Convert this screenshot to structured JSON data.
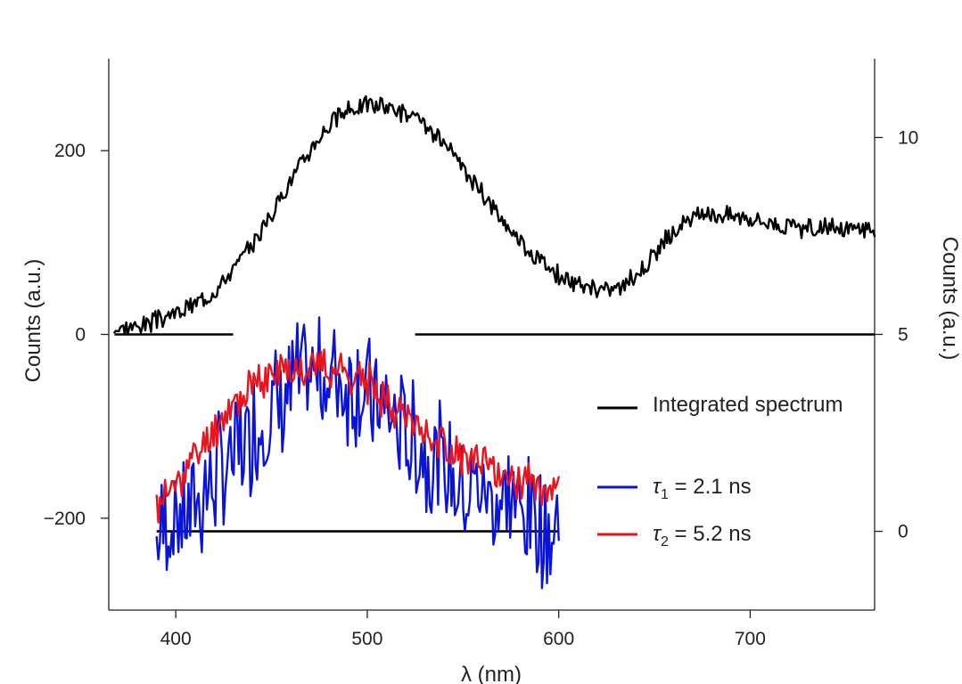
{
  "chart_data": {
    "type": "line",
    "xlabel": "λ (nm)",
    "ylabel_left": "Counts (a.u.)",
    "ylabel_right": "Counts (a.u.)",
    "xlim": [
      365,
      765
    ],
    "ylim_left": [
      -300,
      300
    ],
    "ylim_right": [
      -2,
      12
    ],
    "x_ticks": [
      400,
      500,
      600,
      700
    ],
    "y_ticks_left": [
      -200,
      0,
      200
    ],
    "y_ticks_right": [
      0,
      5,
      10
    ],
    "legend_position": "right",
    "series": [
      {
        "name": "Integrated spectrum",
        "color": "#000000",
        "axis": "left",
        "x_start": 368,
        "x_step": 2,
        "noise_seed": 3,
        "values": [
          5,
          6,
          8,
          10,
          12,
          14,
          17,
          20,
          23,
          27,
          31,
          36,
          42,
          49,
          57,
          66,
          76,
          87,
          99,
          112,
          126,
          140,
          155,
          169,
          182,
          195,
          207,
          218,
          228,
          236,
          242,
          246,
          249,
          250,
          250,
          249,
          247,
          244,
          240,
          235,
          229,
          222,
          214,
          205,
          195,
          185,
          174,
          163,
          152,
          141,
          130,
          120,
          110,
          101,
          92,
          84,
          77,
          70,
          64,
          59,
          55,
          52,
          50,
          49,
          49,
          50,
          53,
          58,
          65,
          74,
          84,
          94,
          104,
          112,
          119,
          124,
          128,
          130,
          131,
          131,
          131,
          130,
          129,
          127,
          125,
          123,
          121,
          119,
          117,
          116,
          115,
          115,
          115,
          115,
          115,
          115,
          115,
          115,
          115,
          115
        ],
        "noise": 9
      },
      {
        "name": "τ1 = 2.1 ns",
        "label_main": "τ",
        "label_sub": "1",
        "label_rest": " = 2.1 ns",
        "color": "#0a14d8",
        "axis": "right",
        "x_start": 390,
        "x_step": 1,
        "noise_seed": 7,
        "values": [
          0.0,
          0.3,
          0.7,
          1.2,
          1.8,
          2.4,
          3.0,
          3.5,
          3.8,
          4.0,
          3.9,
          3.7,
          3.3,
          2.8,
          2.3,
          1.9,
          1.5,
          1.2,
          1.0,
          0.8,
          0.6,
          0.3,
          0.0
        ],
        "noise": 1.35
      },
      {
        "name": "τ2 = 5.2 ns",
        "label_main": "τ",
        "label_sub": "2",
        "label_rest": " = 5.2 ns",
        "color": "#e8141e",
        "axis": "right",
        "x_start": 390,
        "x_step": 1,
        "noise_seed": 11,
        "values": [
          0.6,
          1.2,
          1.8,
          2.5,
          3.1,
          3.6,
          3.9,
          4.1,
          4.2,
          4.2,
          4.1,
          3.9,
          3.6,
          3.2,
          2.8,
          2.4,
          2.1,
          1.8,
          1.6,
          1.4,
          1.3,
          1.2,
          1.1
        ],
        "noise": 0.45
      }
    ],
    "baselines": [
      {
        "name": "zero-left",
        "axis": "left",
        "y": 0,
        "segments": [
          [
            368,
            430
          ],
          [
            525,
            765
          ]
        ]
      },
      {
        "name": "zero-right",
        "axis": "right",
        "y": 0,
        "segments": [
          [
            390,
            600
          ]
        ]
      }
    ]
  }
}
